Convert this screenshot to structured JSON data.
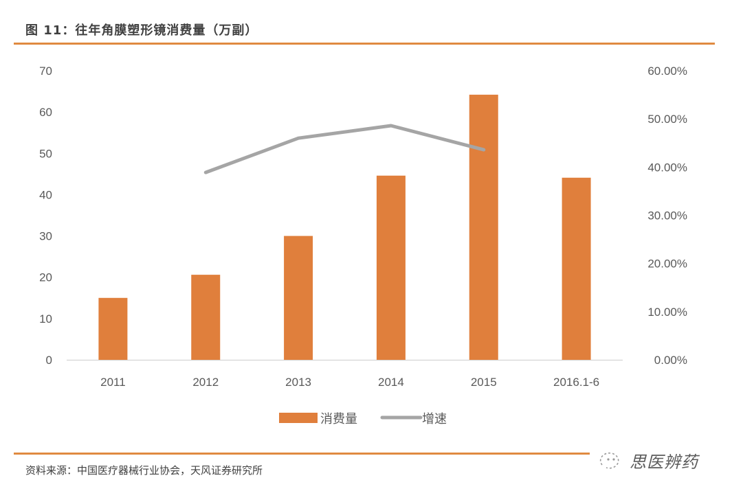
{
  "figure": {
    "title": "图 11：往年角膜塑形镜消费量（万副）",
    "source": "资料来源：中国医疗器械行业协会，天风证券研究所",
    "watermark": "思医辨药"
  },
  "colors": {
    "accent_rule": "#e08a40",
    "bar": "#e07f3c",
    "line": "#a5a5a5",
    "axis": "#d9d9d9",
    "text": "#595959"
  },
  "chart_data": {
    "type": "bar+line",
    "title": "图 11：往年角膜塑形镜消费量（万副）",
    "categories": [
      "2011",
      "2012",
      "2013",
      "2014",
      "2015",
      "2016.1-6"
    ],
    "series": [
      {
        "name": "消费量",
        "type": "bar",
        "axis": "left",
        "values": [
          15,
          20.6,
          30,
          44.6,
          64.2,
          44.1
        ]
      },
      {
        "name": "增速",
        "type": "line",
        "axis": "right",
        "values": [
          null,
          0.389,
          0.46,
          0.486,
          0.436,
          null
        ]
      }
    ],
    "left_axis": {
      "min": 0,
      "max": 70,
      "step": 10,
      "ticks": [
        "0",
        "10",
        "20",
        "30",
        "40",
        "50",
        "60",
        "70"
      ]
    },
    "right_axis": {
      "min": 0,
      "max": 0.6,
      "step": 0.1,
      "ticks": [
        "0.00%",
        "10.00%",
        "20.00%",
        "30.00%",
        "40.00%",
        "50.00%",
        "60.00%"
      ]
    },
    "xlabel": "",
    "ylabel": "",
    "ylabel_right": "",
    "grid": false,
    "legend": {
      "position": "bottom",
      "entries": [
        "消费量",
        "增速"
      ]
    }
  }
}
